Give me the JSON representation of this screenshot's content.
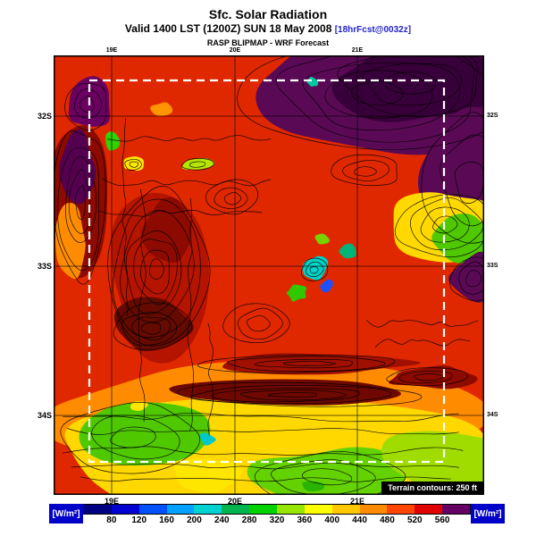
{
  "header": {
    "title": "Sfc. Solar Radiation",
    "valid_line": "Valid 1400 LST (1200Z) SUN 18 May 2008",
    "fcst_tag": "[18hrFcst@0032z]",
    "model_line": "RASP BLIPMAP - WRF Forecast"
  },
  "map": {
    "lat_labels": [
      "32S",
      "33S",
      "34S"
    ],
    "lon_labels": [
      "19E",
      "20E",
      "21E"
    ],
    "overlay_note": "Terrain contours: 250 ft"
  },
  "legend": {
    "units_left": "[W/m²]",
    "units_right": "[W/m²]",
    "ticks": [
      80,
      120,
      160,
      200,
      240,
      280,
      320,
      360,
      400,
      440,
      480,
      520,
      560
    ],
    "colors": [
      "#000082",
      "#0000d2",
      "#0050ff",
      "#00a0ff",
      "#00d2d2",
      "#00b450",
      "#00d200",
      "#96e600",
      "#ffff00",
      "#ffc800",
      "#ff8c00",
      "#ff4600",
      "#e10000",
      "#640064"
    ],
    "label_bg": "#0000c8"
  },
  "chart_data": {
    "type": "heatmap",
    "title": "Sfc. Solar Radiation",
    "subtitle": "Valid 1400 LST (1200Z) SUN 18 May 2008 [18hrFcst@0032z]",
    "source": "RASP BLIPMAP - WRF Forecast",
    "units": "W/m²",
    "scale_ticks": [
      80,
      120,
      160,
      200,
      240,
      280,
      320,
      360,
      400,
      440,
      480,
      520,
      560
    ],
    "scale_colors": [
      "#000082",
      "#0000d2",
      "#0050ff",
      "#00a0ff",
      "#00d2d2",
      "#00b450",
      "#00d200",
      "#96e600",
      "#ffff00",
      "#ffc800",
      "#ff8c00",
      "#ff4600",
      "#e10000",
      "#640064"
    ],
    "x_ticks": [
      "19E",
      "20E",
      "21E"
    ],
    "y_ticks": [
      "32S",
      "33S",
      "34S"
    ],
    "annotation": "Terrain contours: 250 ft",
    "legend_position": "bottom"
  }
}
